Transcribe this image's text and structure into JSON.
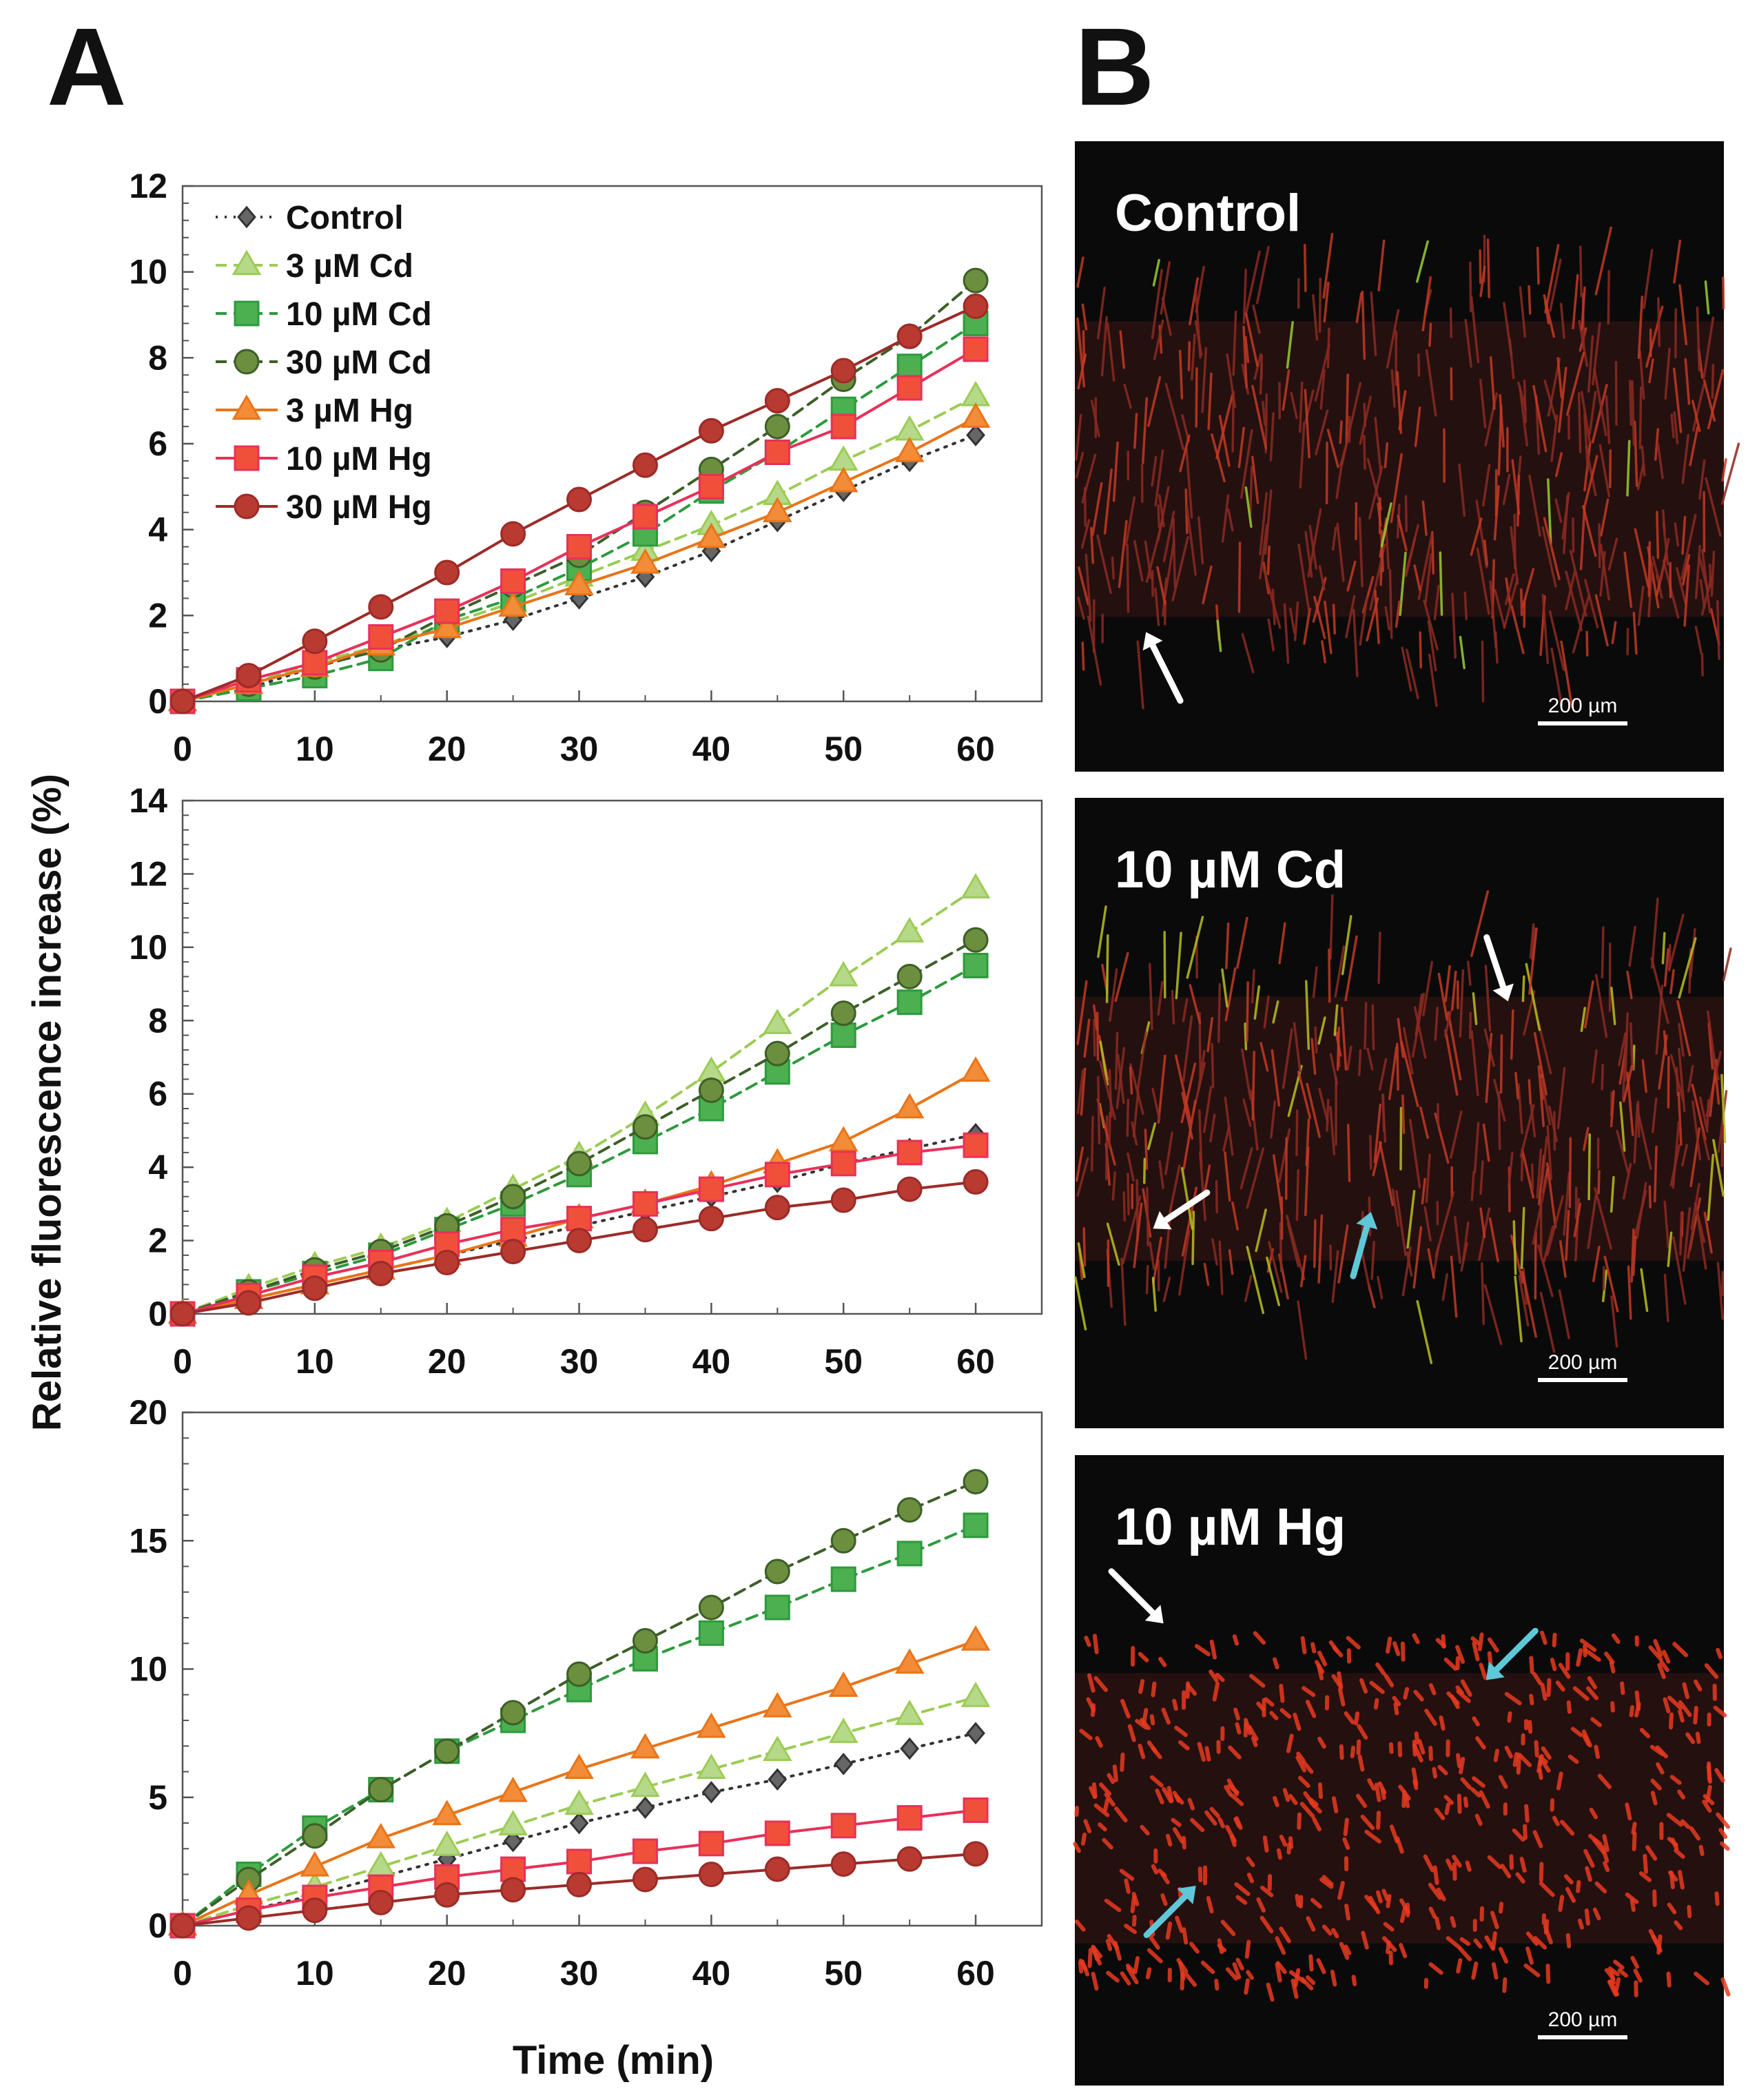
{
  "panel_labels": {
    "a": "A",
    "b": "B"
  },
  "axes": {
    "ylabel": "Relative fluorescence increase (%)",
    "xlabel": "Time (min)"
  },
  "legend": {
    "entries": [
      "Control",
      "3 µM Cd",
      "10 µM Cd",
      "30 µM Cd",
      "3 µM Hg",
      "10 µM Hg",
      "30 µM Hg"
    ]
  },
  "series_styles": [
    {
      "name": "Control",
      "color": "#333333",
      "fill": "#666666",
      "marker": "diamond",
      "dash": "dotted"
    },
    {
      "name": "3 µM Cd",
      "color": "#9ccc55",
      "fill": "#b5d989",
      "marker": "triangle",
      "dash": "dashed"
    },
    {
      "name": "10 µM Cd",
      "color": "#2e9a3e",
      "fill": "#4caf50",
      "marker": "square",
      "dash": "dashed"
    },
    {
      "name": "30 µM Cd",
      "color": "#3d5f28",
      "fill": "#6b8f3e",
      "marker": "circle",
      "dash": "dashed"
    },
    {
      "name": "3 µM Hg",
      "color": "#e8751a",
      "fill": "#f28c38",
      "marker": "triangle",
      "dash": "solid"
    },
    {
      "name": "10 µM Hg",
      "color": "#e8305a",
      "fill": "#f0503a",
      "marker": "square",
      "dash": "solid"
    },
    {
      "name": "30 µM Hg",
      "color": "#9c2b28",
      "fill": "#b83a30",
      "marker": "circle",
      "dash": "solid"
    }
  ],
  "chart_data": [
    {
      "type": "line",
      "title": "",
      "xlabel": "",
      "ylabel": "Relative fluorescence increase (%)",
      "x": [
        0,
        5,
        10,
        15,
        20,
        25,
        30,
        35,
        40,
        45,
        50,
        55,
        60
      ],
      "xticks": [
        "0",
        "10",
        "20",
        "30",
        "40",
        "50",
        "60"
      ],
      "xlim": [
        0,
        65
      ],
      "ylim": [
        0,
        12
      ],
      "yticks": [
        "0",
        "2",
        "4",
        "6",
        "8",
        "10",
        "12"
      ],
      "legend": "top-left",
      "series": [
        {
          "name": "Control",
          "values": [
            0,
            0.3,
            0.8,
            1.2,
            1.5,
            1.9,
            2.4,
            2.9,
            3.5,
            4.2,
            4.9,
            5.6,
            6.2
          ]
        },
        {
          "name": "3 µM Cd",
          "values": [
            0,
            0.4,
            0.9,
            1.3,
            1.8,
            2.3,
            2.9,
            3.5,
            4.1,
            4.8,
            5.6,
            6.3,
            7.1
          ]
        },
        {
          "name": "10 µM Cd",
          "values": [
            0,
            0.3,
            0.6,
            1.0,
            1.9,
            2.4,
            3.1,
            3.9,
            4.9,
            5.8,
            6.8,
            7.8,
            8.8
          ]
        },
        {
          "name": "30 µM Cd",
          "values": [
            0,
            0.4,
            0.8,
            1.2,
            2.0,
            2.7,
            3.4,
            4.4,
            5.4,
            6.4,
            7.5,
            8.5,
            9.8
          ]
        },
        {
          "name": "3 µM Hg",
          "values": [
            0,
            0.4,
            0.8,
            1.3,
            1.7,
            2.2,
            2.7,
            3.2,
            3.8,
            4.4,
            5.1,
            5.8,
            6.6
          ]
        },
        {
          "name": "10 µM Hg",
          "values": [
            0,
            0.5,
            0.9,
            1.5,
            2.1,
            2.8,
            3.6,
            4.3,
            5.0,
            5.8,
            6.4,
            7.3,
            8.2
          ]
        },
        {
          "name": "30 µM Hg",
          "values": [
            0,
            0.6,
            1.4,
            2.2,
            3.0,
            3.9,
            4.7,
            5.5,
            6.3,
            7.0,
            7.7,
            8.5,
            9.2
          ]
        }
      ]
    },
    {
      "type": "line",
      "title": "",
      "xlabel": "",
      "ylabel": "Relative fluorescence increase (%)",
      "x": [
        0,
        5,
        10,
        15,
        20,
        25,
        30,
        35,
        40,
        45,
        50,
        55,
        60
      ],
      "xticks": [
        "0",
        "10",
        "20",
        "30",
        "40",
        "50",
        "60"
      ],
      "xlim": [
        0,
        65
      ],
      "ylim": [
        0,
        14
      ],
      "yticks": [
        "0",
        "2",
        "4",
        "6",
        "8",
        "10",
        "12",
        "14"
      ],
      "series": [
        {
          "name": "Control",
          "values": [
            0,
            0.4,
            0.8,
            1.2,
            1.6,
            2.0,
            2.4,
            2.8,
            3.2,
            3.6,
            4.1,
            4.5,
            4.9
          ]
        },
        {
          "name": "3 µM Cd",
          "values": [
            0,
            0.7,
            1.3,
            1.8,
            2.5,
            3.4,
            4.3,
            5.4,
            6.6,
            7.9,
            9.2,
            10.4,
            11.6
          ]
        },
        {
          "name": "10 µM Cd",
          "values": [
            0,
            0.6,
            1.1,
            1.6,
            2.3,
            3.0,
            3.8,
            4.7,
            5.6,
            6.6,
            7.6,
            8.5,
            9.5
          ]
        },
        {
          "name": "30 µM Cd",
          "values": [
            0,
            0.6,
            1.2,
            1.7,
            2.4,
            3.2,
            4.1,
            5.1,
            6.1,
            7.1,
            8.2,
            9.2,
            10.2
          ]
        },
        {
          "name": "3 µM Hg",
          "values": [
            0,
            0.4,
            0.8,
            1.2,
            1.6,
            2.1,
            2.6,
            3.0,
            3.5,
            4.1,
            4.7,
            5.6,
            6.6
          ]
        },
        {
          "name": "10 µM Hg",
          "values": [
            0,
            0.5,
            1.0,
            1.4,
            1.9,
            2.3,
            2.6,
            3.0,
            3.4,
            3.8,
            4.1,
            4.4,
            4.6
          ]
        },
        {
          "name": "30 µM Hg",
          "values": [
            0,
            0.3,
            0.7,
            1.1,
            1.4,
            1.7,
            2.0,
            2.3,
            2.6,
            2.9,
            3.1,
            3.4,
            3.6
          ]
        }
      ]
    },
    {
      "type": "line",
      "title": "",
      "xlabel": "Time (min)",
      "ylabel": "Relative fluorescence increase (%)",
      "x": [
        0,
        5,
        10,
        15,
        20,
        25,
        30,
        35,
        40,
        45,
        50,
        55,
        60
      ],
      "xticks": [
        "0",
        "10",
        "20",
        "30",
        "40",
        "50",
        "60"
      ],
      "xlim": [
        0,
        65
      ],
      "ylim": [
        0,
        20
      ],
      "yticks": [
        "0",
        "5",
        "10",
        "15",
        "20"
      ],
      "series": [
        {
          "name": "Control",
          "values": [
            0,
            0.6,
            1.2,
            1.9,
            2.6,
            3.3,
            4.0,
            4.6,
            5.2,
            5.7,
            6.3,
            6.9,
            7.5
          ]
        },
        {
          "name": "3 µM Cd",
          "values": [
            0,
            0.8,
            1.5,
            2.3,
            3.1,
            3.9,
            4.7,
            5.4,
            6.1,
            6.8,
            7.5,
            8.2,
            8.9
          ]
        },
        {
          "name": "10 µM Cd",
          "values": [
            0,
            2.0,
            3.8,
            5.3,
            6.8,
            8.0,
            9.2,
            10.4,
            11.4,
            12.4,
            13.5,
            14.5,
            15.6
          ]
        },
        {
          "name": "30 µM Cd",
          "values": [
            0,
            1.8,
            3.5,
            5.3,
            6.8,
            8.3,
            9.8,
            11.1,
            12.4,
            13.8,
            15.0,
            16.2,
            17.3
          ]
        },
        {
          "name": "3 µM Hg",
          "values": [
            0,
            1.2,
            2.3,
            3.4,
            4.3,
            5.2,
            6.1,
            6.9,
            7.7,
            8.5,
            9.3,
            10.2,
            11.1
          ]
        },
        {
          "name": "10 µM Hg",
          "values": [
            0,
            0.6,
            1.1,
            1.5,
            1.9,
            2.2,
            2.5,
            2.9,
            3.2,
            3.6,
            3.9,
            4.2,
            4.5
          ]
        },
        {
          "name": "30 µM Hg",
          "values": [
            0,
            0.3,
            0.6,
            0.9,
            1.2,
            1.4,
            1.6,
            1.8,
            2.0,
            2.2,
            2.4,
            2.6,
            2.8
          ]
        }
      ]
    }
  ],
  "micrographs": [
    {
      "label": "Control",
      "scale_bar": "200 µm",
      "arrows": [
        "white"
      ]
    },
    {
      "label": "10 µM Cd",
      "scale_bar": "200 µm",
      "arrows": [
        "white",
        "white",
        "cyan"
      ]
    },
    {
      "label": "10 µM Hg",
      "scale_bar": "200 µm",
      "arrows": [
        "white",
        "cyan",
        "cyan"
      ]
    }
  ]
}
